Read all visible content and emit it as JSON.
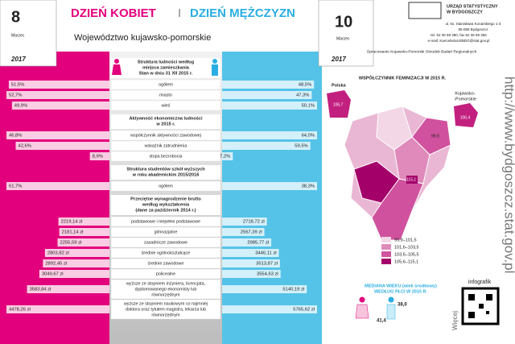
{
  "header": {
    "left_day": "8",
    "left_month": "Marzec",
    "left_year": "2017",
    "title_women": "DZIEŃ KOBIET",
    "separator": "I",
    "title_men": "DZIEŃ MĘŻCZYZN",
    "subtitle": "Województwo kujawsko-pomorskie",
    "right_day": "10",
    "right_month": "Marzec",
    "right_year": "2017"
  },
  "office": {
    "name": [
      "URZĄD STATYSTYCZNY",
      "W BYDGOSZCZY"
    ],
    "address": [
      "ul. ks. Stanisława Konarskiego 1-3",
      "85-066 Bydgoszcz",
      "tel. 52 36 69 390, fax 52 36 69 356",
      "e-mail: KancelariaUSBDG@stat.gov.pl"
    ],
    "credit": "Opracowanie Kujawsko-Pomorski Ośrodek Badań Regionalnych"
  },
  "sections": [
    {
      "heading": [
        "Struktura ludności według",
        "miejsca zamieszkania",
        "Stan w dniu 31 XII 2015 r."
      ],
      "rows": [
        {
          "label": [
            "ogółem"
          ],
          "women": {
            "value": 51.5,
            "label": "51,5%"
          },
          "men": {
            "value": 48.5,
            "label": "48,5%"
          }
        },
        {
          "label": [
            "miasto"
          ],
          "women": {
            "value": 52.7,
            "label": "52,7%"
          },
          "men": {
            "value": 47.3,
            "label": "47,3%"
          }
        },
        {
          "label": [
            "wieś"
          ],
          "women": {
            "value": 49.9,
            "label": "49,9%"
          },
          "men": {
            "value": 50.1,
            "label": "50,1%"
          }
        }
      ]
    },
    {
      "heading": [
        "Aktywność ekonomiczna ludności",
        "w 2015 r."
      ],
      "rows": [
        {
          "label": [
            "współczynnik aktywności zawodowej"
          ],
          "women": {
            "value": 46.8,
            "label": "46,8%"
          },
          "men": {
            "value": 64.0,
            "label": "64,0%"
          }
        },
        {
          "label": [
            "wskaźnik zatrudnienia"
          ],
          "women": {
            "value": 42.6,
            "label": "42,6%"
          },
          "men": {
            "value": 59.5,
            "label": "59,5%"
          }
        },
        {
          "label": [
            "stopa bezrobocia"
          ],
          "women": {
            "value": 8.9,
            "label": "8,9%"
          },
          "men": {
            "value": 7.2,
            "label": "7,2%"
          }
        }
      ]
    },
    {
      "heading": [
        "Struktura studentów szkół wyższych",
        "w roku akademickim 2015/2016"
      ],
      "rows": [
        {
          "label": [
            "ogółem"
          ],
          "women": {
            "value": 61.7,
            "label": "61,7%"
          },
          "men": {
            "value": 38.3,
            "label": "38,3%"
          }
        }
      ]
    },
    {
      "heading": [
        "Przeciętne wynagrodzenie brutto",
        "według wykształcenia",
        "(dane za październik 2014 r.)"
      ],
      "rows": [
        {
          "label": [
            "podstawowe i niepełne podstawowe"
          ],
          "women": {
            "value": 2219.14,
            "label": "2219,14 zł"
          },
          "men": {
            "value": 2718.72,
            "label": "2718,72 zł"
          }
        },
        {
          "label": [
            "gimnazjalne"
          ],
          "women": {
            "value": 2181.14,
            "label": "2181,14 zł"
          },
          "men": {
            "value": 2567.39,
            "label": "2567,39 zł"
          }
        },
        {
          "label": [
            "zasadnicze zawodowe"
          ],
          "women": {
            "value": 2255.59,
            "label": "2255,59 zł"
          },
          "men": {
            "value": 2985.77,
            "label": "2985,77 zł"
          }
        },
        {
          "label": [
            "średnie ogólnokształcące"
          ],
          "women": {
            "value": 2803.82,
            "label": "2803,82 zł"
          },
          "men": {
            "value": 3446.11,
            "label": "3446,11 zł"
          }
        },
        {
          "label": [
            "średnie zawodowe"
          ],
          "women": {
            "value": 2892.45,
            "label": "2892,45 zł"
          },
          "men": {
            "value": 3513.87,
            "label": "3513,87 zł"
          }
        },
        {
          "label": [
            "policealne"
          ],
          "women": {
            "value": 3049.67,
            "label": "3049,67 zł"
          },
          "men": {
            "value": 3554.63,
            "label": "3554,63 zł"
          }
        },
        {
          "label": [
            "wyższe ze stopniem inżyniera, licencjata,",
            "dyplomowanego ekonomisty lub",
            "równorzędnym"
          ],
          "women": {
            "value": 3583.84,
            "label": "3583,84 zł"
          },
          "men": {
            "value": 5140.19,
            "label": "5140,19 zł"
          }
        },
        {
          "label": [
            "wyższe ze stopniem naukowym co najmniej",
            "doktora oraz tytułem magistra, lekarza lub",
            "równorzędnym"
          ],
          "women": {
            "value": 4478.26,
            "label": "4478,26 zł"
          },
          "men": {
            "value": 5765.62,
            "label": "5765,62 zł"
          }
        }
      ]
    }
  ],
  "map": {
    "title": "WSPÓŁCZYNNIK FEMINIZACJI W 2015 R.",
    "poland_label": "Polska",
    "poland_value": "106,7",
    "region_label": [
      "Kujawsko-",
      "-Pomorskie"
    ],
    "region_value": "106,4",
    "district_values": [
      "99,9",
      "115,1"
    ],
    "legend": [
      "99,9–101,5",
      "101,6–103,5",
      "103,6–105,5",
      "105,6–115,1"
    ]
  },
  "median": {
    "title": [
      "MEDIANA WIEKU (wiek środkowy)",
      "WEDŁUG PŁCI W 2015 R."
    ],
    "women": "41,4",
    "men": "38,0"
  },
  "url": "http://www.bydgoszcz.stat.gov.pl",
  "infografik": "infografik",
  "more": "Więcej"
}
